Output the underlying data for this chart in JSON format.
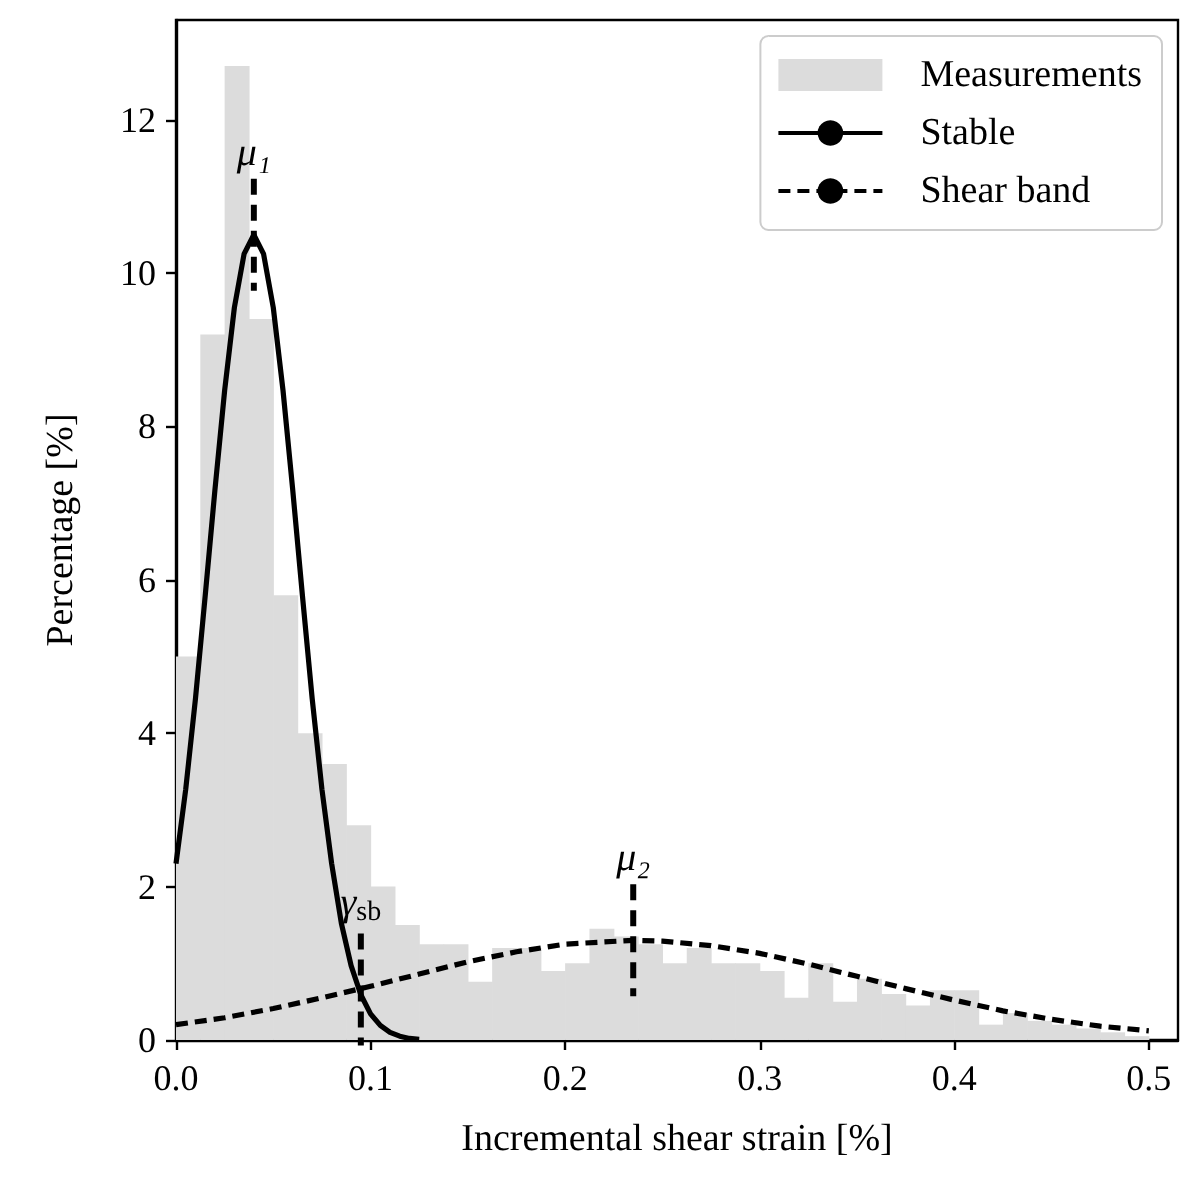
{
  "chart_data": {
    "type": "histogram",
    "xlabel": "Incremental shear strain [%]",
    "ylabel": "Percentage [%]",
    "bins": [
      0,
      0.0125,
      0.025,
      0.0375,
      0.05,
      0.0625,
      0.075,
      0.0875,
      0.1,
      0.1125,
      0.125,
      0.1375,
      0.15,
      0.1625,
      0.175,
      0.1875,
      0.2,
      0.2125,
      0.225,
      0.2375,
      0.25,
      0.2625,
      0.275,
      0.2875,
      0.3,
      0.3125,
      0.325,
      0.3375,
      0.35,
      0.3625,
      0.375,
      0.3875,
      0.4,
      0.4125,
      0.425,
      0.4375,
      0.45,
      0.4625,
      0.475,
      0.4875,
      0.5
    ],
    "series": [
      {
        "name": "Measurements",
        "color": "#dcdcdc",
        "values": [
          5.0,
          9.2,
          12.7,
          9.4,
          5.8,
          4.0,
          3.6,
          2.8,
          2.0,
          1.5,
          1.25,
          1.25,
          0.76,
          1.2,
          1.2,
          0.9,
          1.0,
          1.45,
          1.35,
          1.25,
          1.0,
          1.2,
          1.0,
          1.0,
          0.9,
          0.55,
          1.0,
          0.5,
          0.8,
          0.6,
          0.45,
          0.65,
          0.65,
          0.2,
          0.35,
          0.25,
          0.2,
          0.15,
          0.1,
          0.05
        ]
      },
      {
        "name": "Stable",
        "type": "line",
        "color": "#000000",
        "line_style": "solid",
        "x": [
          0,
          0.005,
          0.01,
          0.015,
          0.02,
          0.025,
          0.03,
          0.035,
          0.04,
          0.045,
          0.05,
          0.055,
          0.06,
          0.065,
          0.07,
          0.075,
          0.08,
          0.085,
          0.09,
          0.095,
          0.1,
          0.105,
          0.11,
          0.115,
          0.12,
          0.125
        ],
        "values": [
          2.3,
          3.27,
          4.45,
          5.79,
          7.17,
          8.47,
          9.55,
          10.25,
          10.5,
          10.25,
          9.55,
          8.47,
          7.17,
          5.79,
          4.45,
          3.27,
          2.3,
          1.52,
          0.97,
          0.59,
          0.34,
          0.19,
          0.1,
          0.05,
          0.02,
          0.01
        ]
      },
      {
        "name": "Shear band",
        "type": "line",
        "color": "#000000",
        "line_style": "dashed",
        "x": [
          0,
          0.025,
          0.05,
          0.075,
          0.1,
          0.125,
          0.15,
          0.175,
          0.2,
          0.235,
          0.25,
          0.275,
          0.3,
          0.325,
          0.35,
          0.375,
          0.4,
          0.425,
          0.45,
          0.475,
          0.5
        ],
        "values": [
          0.2,
          0.29,
          0.41,
          0.55,
          0.7,
          0.86,
          1.02,
          1.15,
          1.25,
          1.3,
          1.29,
          1.23,
          1.13,
          0.99,
          0.83,
          0.67,
          0.52,
          0.38,
          0.27,
          0.18,
          0.12
        ]
      }
    ],
    "annotations": [
      {
        "text": "μ₁",
        "x": 0.04,
        "y": 10.5
      },
      {
        "text": "γ$_{sb}$",
        "x": 0.095,
        "y": 0.66
      },
      {
        "text": "μ₂",
        "x": 0.235,
        "y": 1.3
      }
    ],
    "xlim": [
      0,
      0.515
    ],
    "ylim": [
      0,
      13.3
    ],
    "xticks": [
      {
        "value": 0,
        "label": "0.0"
      },
      {
        "value": 0.1,
        "label": "0.1"
      },
      {
        "value": 0.2,
        "label": "0.2"
      },
      {
        "value": 0.3,
        "label": "0.3"
      },
      {
        "value": 0.4,
        "label": "0.4"
      },
      {
        "value": 0.5,
        "label": "0.5"
      }
    ],
    "yticks": [
      0,
      2,
      4,
      6,
      8,
      10,
      12
    ],
    "legend": "top right"
  }
}
